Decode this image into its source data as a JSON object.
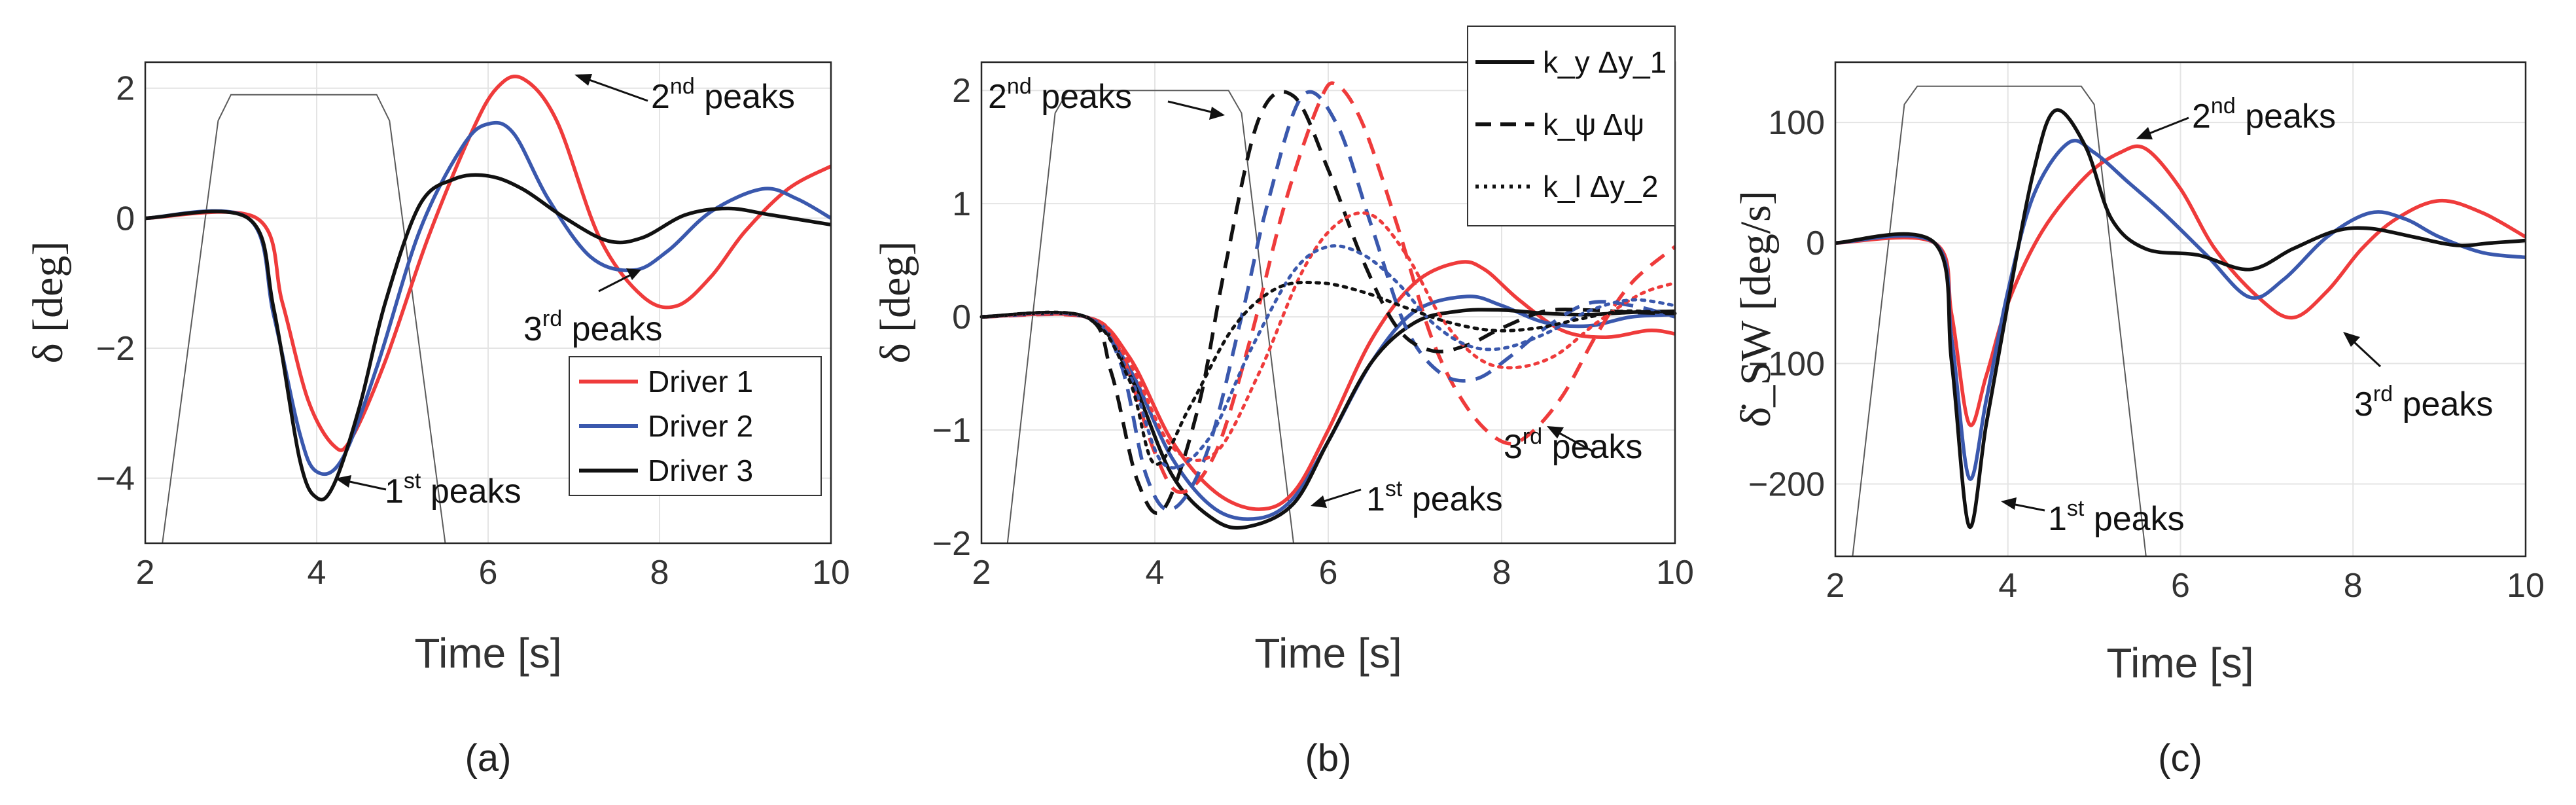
{
  "chart_data": [
    {
      "panel_label": "(a)",
      "type": "line",
      "xlabel": "Time [s]",
      "ylabel": "δ [deg]",
      "xlim": [
        2,
        10
      ],
      "ylim": [
        -5,
        2.4
      ],
      "xticks": [
        2,
        4,
        6,
        8,
        10
      ],
      "xtick_labels": [
        "2",
        "4",
        "6",
        "8",
        "10"
      ],
      "yticks": [
        -4,
        -2,
        0,
        2
      ],
      "ytick_labels": [
        "−4",
        "−2",
        "0",
        "2"
      ],
      "grid": true,
      "legend": {
        "position": "bottom-right",
        "entries": [
          "Driver 1",
          "Driver 2",
          "Driver 3"
        ]
      },
      "background_window": {
        "description": "thin gray trapezoid outline",
        "x": [
          2.2,
          2.85,
          3.0,
          4.7,
          4.85,
          5.5
        ],
        "y": [
          -5,
          1.5,
          1.9,
          1.9,
          1.5,
          -5
        ]
      },
      "series": [
        {
          "name": "Driver 1",
          "color": "#ef3b3b",
          "style": "solid",
          "x": [
            2,
            3.3,
            3.6,
            3.9,
            4.2,
            4.4,
            4.8,
            5.3,
            5.8,
            6.1,
            6.4,
            6.8,
            7.3,
            7.8,
            8.2,
            8.6,
            9.0,
            9.5,
            10
          ],
          "y": [
            0,
            0,
            -1.3,
            -2.8,
            -3.5,
            -3.4,
            -2.2,
            -0.3,
            1.3,
            2.0,
            2.15,
            1.5,
            -0.3,
            -1.2,
            -1.35,
            -0.9,
            -0.2,
            0.45,
            0.8
          ]
        },
        {
          "name": "Driver 2",
          "color": "#3a58ad",
          "style": "solid",
          "x": [
            2,
            3.2,
            3.5,
            3.8,
            4.0,
            4.3,
            4.7,
            5.2,
            5.7,
            6.0,
            6.3,
            6.7,
            7.2,
            7.7,
            8.1,
            8.6,
            9.2,
            9.6,
            10
          ],
          "y": [
            0,
            0,
            -1.5,
            -3.3,
            -3.9,
            -3.7,
            -2.3,
            -0.2,
            1.1,
            1.45,
            1.3,
            0.3,
            -0.6,
            -0.8,
            -0.5,
            0.1,
            0.45,
            0.3,
            0.0
          ]
        },
        {
          "name": "Driver 3",
          "color": "#111111",
          "style": "solid",
          "x": [
            2,
            3.2,
            3.5,
            3.8,
            4.0,
            4.2,
            4.5,
            4.8,
            5.2,
            5.6,
            6.0,
            6.4,
            6.9,
            7.4,
            7.8,
            8.3,
            8.8,
            9.3,
            10
          ],
          "y": [
            0,
            0,
            -1.4,
            -3.7,
            -4.3,
            -4.1,
            -2.9,
            -1.3,
            0.2,
            0.6,
            0.65,
            0.45,
            0.0,
            -0.35,
            -0.3,
            0.05,
            0.15,
            0.05,
            -0.1
          ]
        }
      ],
      "annotations": [
        {
          "text": "2nd peaks",
          "base": "2",
          "sup": "nd",
          "rest": " peaks",
          "points_to": [
            6.45,
            2.1
          ]
        },
        {
          "text": "3rd peaks",
          "base": "3",
          "sup": "rd",
          "rest": " peaks",
          "points_to": [
            7.6,
            -0.85
          ]
        },
        {
          "text": "1st peaks",
          "base": "1",
          "sup": "st",
          "rest": " peaks",
          "points_to": [
            4.05,
            -4.1
          ]
        }
      ]
    },
    {
      "panel_label": "(b)",
      "type": "line",
      "xlabel": "Time [s]",
      "ylabel": "δ [deg]",
      "xlim": [
        2,
        10
      ],
      "ylim": [
        -2,
        2.25
      ],
      "xticks": [
        2,
        4,
        6,
        8,
        10
      ],
      "xtick_labels": [
        "2",
        "4",
        "6",
        "8",
        "10"
      ],
      "yticks": [
        -2,
        -1,
        0,
        1,
        2
      ],
      "ytick_labels": [
        "−2",
        "−1",
        "0",
        "1",
        "2"
      ],
      "grid": true,
      "legend": {
        "position": "top-right",
        "entries": [
          "k_y Δy_1",
          "k_ψ Δψ",
          "k_l Δy_2"
        ],
        "styles": [
          "solid",
          "dashed",
          "dotted"
        ]
      },
      "background_window": {
        "description": "thin gray trapezoid outline",
        "x": [
          2.3,
          2.85,
          3.0,
          4.85,
          5.0,
          5.6
        ],
        "y": [
          -2,
          1.8,
          2.0,
          2.0,
          1.8,
          -2
        ]
      },
      "series": [
        {
          "name": "Driver 1 k_y Δy_1",
          "color": "#ef3b3b",
          "style": "solid",
          "x": [
            2,
            3.2,
            3.7,
            4.2,
            4.7,
            5.2,
            5.6,
            6.0,
            6.5,
            7.0,
            7.5,
            7.8,
            8.2,
            8.7,
            9.2,
            9.7,
            10
          ],
          "y": [
            0,
            0,
            -0.35,
            -1.1,
            -1.55,
            -1.7,
            -1.55,
            -1.0,
            -0.2,
            0.3,
            0.48,
            0.42,
            0.15,
            -0.12,
            -0.18,
            -0.12,
            -0.15
          ]
        },
        {
          "name": "Driver 2 k_y Δy_1",
          "color": "#3a58ad",
          "style": "solid",
          "x": [
            2,
            3.2,
            3.7,
            4.2,
            4.7,
            5.2,
            5.6,
            6.0,
            6.5,
            7.0,
            7.6,
            8.0,
            8.5,
            9.0,
            9.5,
            10
          ],
          "y": [
            0,
            0,
            -0.45,
            -1.25,
            -1.7,
            -1.78,
            -1.6,
            -1.1,
            -0.4,
            0.05,
            0.18,
            0.1,
            -0.05,
            -0.08,
            0.0,
            0.02
          ]
        },
        {
          "name": "Driver 3 k_y Δy_1",
          "color": "#111111",
          "style": "solid",
          "x": [
            2,
            3.2,
            3.7,
            4.2,
            4.7,
            5.1,
            5.6,
            6.0,
            6.5,
            7.0,
            7.5,
            8.0,
            8.5,
            9.0,
            9.5,
            10
          ],
          "y": [
            0,
            0,
            -0.5,
            -1.4,
            -1.8,
            -1.85,
            -1.65,
            -1.1,
            -0.4,
            -0.05,
            0.05,
            0.06,
            0.03,
            0.02,
            0.04,
            0.05
          ]
        },
        {
          "name": "Driver 1 k_ψ Δψ",
          "color": "#ef3b3b",
          "style": "dashed",
          "x": [
            2,
            3.2,
            3.6,
            4.0,
            4.3,
            4.7,
            5.1,
            5.5,
            5.9,
            6.1,
            6.4,
            6.8,
            7.2,
            7.6,
            8.0,
            8.3,
            8.7,
            9.1,
            9.5,
            10
          ],
          "y": [
            0,
            0,
            -0.3,
            -1.2,
            -1.55,
            -1.2,
            -0.2,
            1.0,
            1.9,
            2.05,
            1.7,
            0.8,
            -0.2,
            -0.8,
            -1.1,
            -1.05,
            -0.7,
            -0.15,
            0.3,
            0.62
          ]
        },
        {
          "name": "Driver 2 k_ψ Δψ",
          "color": "#3a58ad",
          "style": "dashed",
          "x": [
            2,
            3.2,
            3.6,
            3.9,
            4.2,
            4.6,
            5.0,
            5.3,
            5.7,
            6.1,
            6.5,
            6.9,
            7.3,
            7.7,
            8.1,
            8.5,
            9.0,
            9.5,
            10
          ],
          "y": [
            0,
            0,
            -0.4,
            -1.4,
            -1.7,
            -1.2,
            0.0,
            1.0,
            1.95,
            1.7,
            0.8,
            -0.1,
            -0.5,
            -0.55,
            -0.35,
            -0.1,
            0.12,
            0.1,
            0.0
          ]
        },
        {
          "name": "Driver 3 k_ψ Δψ",
          "color": "#111111",
          "style": "dashed",
          "x": [
            2,
            3.2,
            3.5,
            3.8,
            4.1,
            4.5,
            4.8,
            5.2,
            5.6,
            6.0,
            6.4,
            6.8,
            7.2,
            7.6,
            8.0,
            8.5,
            9.0,
            9.5,
            10
          ],
          "y": [
            0,
            0,
            -0.5,
            -1.45,
            -1.7,
            -0.8,
            0.4,
            1.75,
            1.95,
            1.3,
            0.5,
            -0.1,
            -0.3,
            -0.25,
            -0.1,
            0.05,
            0.06,
            0.04,
            0.03
          ]
        },
        {
          "name": "Driver 1 k_l Δy_2",
          "color": "#ef3b3b",
          "style": "dotted",
          "x": [
            2,
            3.2,
            3.7,
            4.2,
            4.7,
            5.2,
            5.7,
            6.1,
            6.5,
            6.9,
            7.3,
            7.7,
            8.1,
            8.6,
            9.1,
            9.6,
            10
          ],
          "y": [
            0,
            0,
            -0.4,
            -1.15,
            -1.2,
            -0.5,
            0.4,
            0.82,
            0.9,
            0.55,
            0.0,
            -0.35,
            -0.45,
            -0.35,
            -0.05,
            0.2,
            0.3
          ]
        },
        {
          "name": "Driver 2 k_l Δy_2",
          "color": "#3a58ad",
          "style": "dotted",
          "x": [
            2,
            3.2,
            3.7,
            4.1,
            4.6,
            5.1,
            5.6,
            6.0,
            6.4,
            6.8,
            7.2,
            7.6,
            8.0,
            8.5,
            9.0,
            9.5,
            10
          ],
          "y": [
            0,
            0,
            -0.5,
            -1.3,
            -1.1,
            -0.3,
            0.4,
            0.62,
            0.55,
            0.3,
            -0.05,
            -0.25,
            -0.28,
            -0.15,
            0.05,
            0.15,
            0.1
          ]
        },
        {
          "name": "Driver 3 k_l Δy_2",
          "color": "#111111",
          "style": "dotted",
          "x": [
            2,
            3.2,
            3.7,
            4.0,
            4.4,
            4.9,
            5.4,
            5.9,
            6.4,
            6.9,
            7.4,
            7.9,
            8.4,
            8.9,
            9.4,
            10
          ],
          "y": [
            0,
            0,
            -0.55,
            -1.3,
            -0.8,
            -0.1,
            0.25,
            0.3,
            0.22,
            0.08,
            -0.05,
            -0.12,
            -0.1,
            -0.02,
            0.05,
            0.03
          ]
        }
      ],
      "annotations": [
        {
          "text": "2nd peaks",
          "base": "2",
          "sup": "nd",
          "rest": " peaks",
          "points_to": [
            5.0,
            1.85
          ]
        },
        {
          "text": "3rd peaks",
          "base": "3",
          "sup": "rd",
          "rest": " peaks",
          "points_to": [
            8.1,
            -0.75
          ]
        },
        {
          "text": "1st peaks",
          "base": "1",
          "sup": "st",
          "rest": " peaks",
          "points_to": [
            5.05,
            -1.65
          ]
        }
      ]
    },
    {
      "panel_label": "(c)",
      "type": "line",
      "xlabel": "Time [s]",
      "ylabel": "δ̇_SW [deg/s]",
      "xlim": [
        2,
        10
      ],
      "ylim": [
        -260,
        150
      ],
      "xticks": [
        2,
        4,
        6,
        8,
        10
      ],
      "xtick_labels": [
        "2",
        "4",
        "6",
        "8",
        "10"
      ],
      "yticks": [
        -200,
        -100,
        0,
        100
      ],
      "ytick_labels": [
        "−200",
        "−100",
        "0",
        "100"
      ],
      "grid": true,
      "background_window": {
        "description": "thin gray trapezoid outline",
        "x": [
          2.2,
          2.8,
          2.95,
          4.85,
          5.0,
          5.6
        ],
        "y": [
          -260,
          115,
          130,
          130,
          115,
          -260
        ]
      },
      "series": [
        {
          "name": "Driver 1",
          "color": "#ef3b3b",
          "style": "solid",
          "x": [
            2,
            3.15,
            3.35,
            3.55,
            3.75,
            4.0,
            4.4,
            4.9,
            5.3,
            5.6,
            6.0,
            6.4,
            6.9,
            7.3,
            7.7,
            8.1,
            8.5,
            9.0,
            9.5,
            10
          ],
          "y": [
            0,
            0,
            -60,
            -150,
            -110,
            -50,
            10,
            55,
            75,
            78,
            45,
            -5,
            -45,
            -62,
            -40,
            -5,
            20,
            35,
            25,
            5
          ]
        },
        {
          "name": "Driver 2",
          "color": "#3a58ad",
          "style": "solid",
          "x": [
            2,
            3.15,
            3.35,
            3.55,
            3.75,
            4.0,
            4.3,
            4.7,
            5.0,
            5.4,
            5.8,
            6.3,
            6.8,
            7.2,
            7.7,
            8.2,
            8.6,
            9.0,
            9.5,
            10
          ],
          "y": [
            0,
            0,
            -80,
            -195,
            -130,
            -40,
            40,
            83,
            75,
            50,
            25,
            -10,
            -45,
            -30,
            5,
            25,
            20,
            5,
            -8,
            -12
          ]
        },
        {
          "name": "Driver 3",
          "color": "#111111",
          "style": "solid",
          "x": [
            2,
            3.15,
            3.35,
            3.55,
            3.75,
            4.0,
            4.3,
            4.55,
            4.9,
            5.2,
            5.6,
            6.2,
            6.8,
            7.3,
            7.8,
            8.2,
            8.7,
            9.2,
            9.6,
            10
          ],
          "y": [
            0,
            0,
            -100,
            -235,
            -150,
            -50,
            60,
            110,
            80,
            20,
            -5,
            -10,
            -22,
            -5,
            10,
            12,
            5,
            -2,
            0,
            2
          ]
        }
      ],
      "annotations": [
        {
          "text": "2nd peaks",
          "base": "2",
          "sup": "nd",
          "rest": " peaks",
          "points_to": [
            4.6,
            108
          ]
        },
        {
          "text": "3rd peaks",
          "base": "3",
          "sup": "rd",
          "rest": " peaks",
          "points_to": [
            7.2,
            -62
          ]
        },
        {
          "text": "1st peaks",
          "base": "1",
          "sup": "st",
          "rest": " peaks",
          "points_to": [
            3.62,
            -228
          ]
        }
      ]
    }
  ]
}
